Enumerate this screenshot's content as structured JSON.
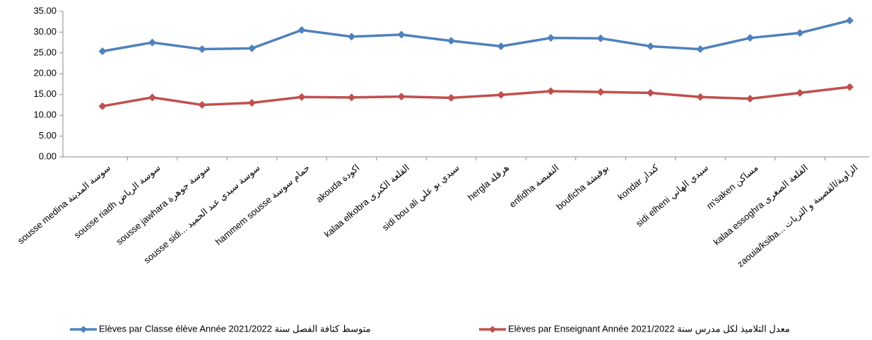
{
  "chart_data": {
    "type": "line",
    "categories": [
      "sousse medina  سوسة المدينة",
      "sousse riadh  سوسة الرياض",
      "sousse jawhara  سوسة جوهرة",
      "sousse sidi...  سوسة سيدي عبد الحميد",
      "hammem sousse  حمام سوسة",
      "akouda  اكودة",
      "kalaa elkobra  القلعة الكبرى",
      "sidi bou ali  سيدي بو علي",
      "hergla  هرقلة",
      "enfidha  النفيضة",
      "bouficha  بوفيشة",
      "kondar  كندار",
      "sidi elheni  سيدي الهاني",
      "m'saken  مساكن",
      "kalaa essoghra  القلعة الصغرى",
      "zaouia/ksiba...  الزاوية/القصيبة و الثريات"
    ],
    "series": [
      {
        "name": "Elèves par Classe élève Année  2021/2022  متوسط كثافة الفصل سنة",
        "color": "#4f81bd",
        "values": [
          25.4,
          27.5,
          25.9,
          26.1,
          30.5,
          28.9,
          29.4,
          27.9,
          26.6,
          28.6,
          28.5,
          26.6,
          25.9,
          28.6,
          29.8,
          32.8
        ]
      },
      {
        "name": "Elèves par Enseignant Année  2021/2022  معدل التلاميذ لكل مدرس سنة",
        "color": "#c0504d",
        "values": [
          12.2,
          14.3,
          12.5,
          13.0,
          14.4,
          14.3,
          14.5,
          14.2,
          14.9,
          15.8,
          15.6,
          15.4,
          14.4,
          14.0,
          15.4,
          16.8
        ]
      }
    ],
    "ylim": [
      0,
      35
    ],
    "yticks": [
      {
        "value": 0,
        "label": "0.00"
      },
      {
        "value": 5,
        "label": "5.00"
      },
      {
        "value": 10,
        "label": "10.00"
      },
      {
        "value": 15,
        "label": "15.00"
      },
      {
        "value": 20,
        "label": "20.00"
      },
      {
        "value": 25,
        "label": "25.00"
      },
      {
        "value": 30,
        "label": "30.00"
      },
      {
        "value": 35,
        "label": "35.00"
      }
    ],
    "legend": "bottom"
  }
}
